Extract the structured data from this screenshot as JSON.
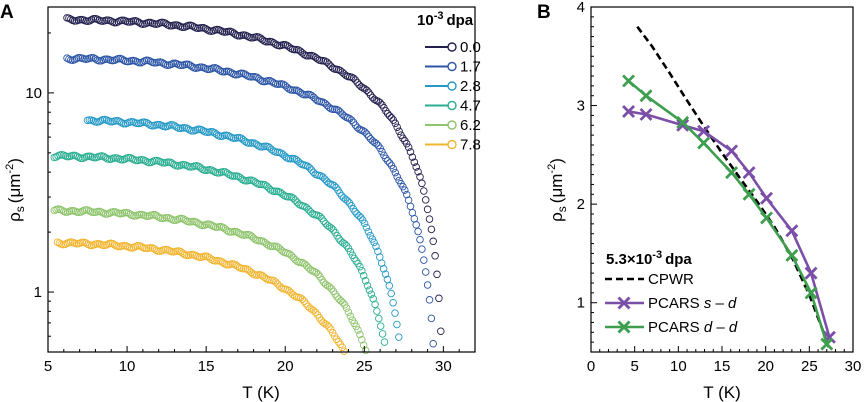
{
  "chart_data": [
    {
      "panel": "A",
      "type": "scatter",
      "xlabel": "T (K)",
      "ylabel": "ρs (μm-2)",
      "ylabel_main": "ρ",
      "ylabel_sub": "s",
      "ylabel_unit": "(μm",
      "ylabel_exp": "-2",
      "ylabel_close": ")",
      "xlim": [
        5,
        32
      ],
      "ylim": [
        0.5,
        27
      ],
      "yscale": "log",
      "xticks": [
        5,
        10,
        15,
        20,
        25,
        30
      ],
      "xtick_labels": [
        "5",
        "10",
        "15",
        "20",
        "25",
        "30"
      ],
      "yticks": [
        1,
        10
      ],
      "ytick_labels": [
        "1",
        "10"
      ],
      "legend_title": "10-3 dpa",
      "legend_title_base": "10",
      "legend_title_exp": "-3",
      "legend_title_unit": "dpa",
      "legend_position": "top-right",
      "series": [
        {
          "name": "0.0",
          "color": "#23204f",
          "rho0": 23.5,
          "tc": 30.1,
          "tstart": 6.2
        },
        {
          "name": "1.7",
          "color": "#2c55a6",
          "rho0": 15.0,
          "tc": 29.7,
          "tstart": 6.2
        },
        {
          "name": "2.8",
          "color": "#2699c6",
          "rho0": 7.4,
          "tc": 27.9,
          "tstart": 7.5
        },
        {
          "name": "4.7",
          "color": "#2bae92",
          "rho0": 4.85,
          "tc": 27.3,
          "tstart": 5.4
        },
        {
          "name": "6.2",
          "color": "#8fc46d",
          "rho0": 2.58,
          "tc": 26.9,
          "tstart": 5.4
        },
        {
          "name": "7.8",
          "color": "#f2b530",
          "rho0": 1.78,
          "tc": 26.3,
          "tstart": 5.6
        }
      ]
    },
    {
      "panel": "B",
      "type": "line",
      "xlabel": "T (K)",
      "ylabel": "ρs (μm-2)",
      "ylabel_main": "ρ",
      "ylabel_sub": "s",
      "ylabel_unit": "(μm",
      "ylabel_exp": "-2",
      "ylabel_close": ")",
      "xlim": [
        0,
        30
      ],
      "ylim": [
        0.5,
        4
      ],
      "xticks": [
        0,
        5,
        10,
        15,
        20,
        25,
        30
      ],
      "xtick_labels": [
        "0",
        "5",
        "10",
        "15",
        "20",
        "25",
        "30"
      ],
      "yticks": [
        1,
        2,
        3,
        4
      ],
      "ytick_labels": [
        "1",
        "2",
        "3",
        "4"
      ],
      "legend_title": "5.3×10-3 dpa",
      "legend_title_base": "5.3×10",
      "legend_title_exp": "-3",
      "legend_title_unit": "dpa",
      "legend_position": "bottom-left",
      "series": [
        {
          "name": "CPWR",
          "legend_parts": [
            "CPWR"
          ],
          "style": "dashed",
          "color": "#000000",
          "x": [
            5.3,
            7,
            9,
            11,
            13,
            15,
            17,
            19,
            21,
            23,
            25,
            26.5,
            27.2
          ],
          "y": [
            3.8,
            3.6,
            3.33,
            3.05,
            2.78,
            2.52,
            2.27,
            2.03,
            1.77,
            1.46,
            1.08,
            0.73,
            0.55
          ]
        },
        {
          "name": "PCARS s-d",
          "legend_parts": [
            "PCARS ",
            "s",
            " – ",
            "d"
          ],
          "style": "line-x",
          "color": "#7b4fa8",
          "x": [
            4.3,
            6.3,
            10.5,
            12.9,
            16.1,
            18.1,
            20.1,
            23.0,
            25.2,
            27.3
          ],
          "y": [
            2.94,
            2.91,
            2.8,
            2.74,
            2.54,
            2.32,
            2.06,
            1.73,
            1.3,
            0.65
          ]
        },
        {
          "name": "PCARS d-d",
          "legend_parts": [
            "PCARS ",
            "d",
            " – ",
            "d"
          ],
          "style": "line-x",
          "color": "#3e9e4f",
          "x": [
            4.3,
            6.3,
            10.5,
            12.9,
            16.1,
            18.1,
            20.1,
            23.0,
            25.2,
            27.0
          ],
          "y": [
            3.25,
            3.1,
            2.83,
            2.62,
            2.32,
            2.1,
            1.86,
            1.48,
            1.1,
            0.58
          ]
        }
      ]
    }
  ]
}
